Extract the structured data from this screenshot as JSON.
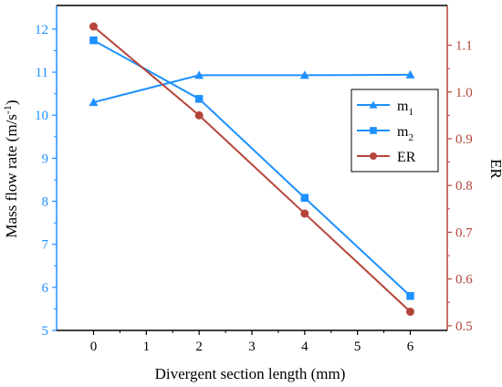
{
  "chart_data": {
    "type": "line",
    "xlabel": "Divergent section length (mm)",
    "ylabel_left": "Mass flow rate (m/s",
    "ylabel_left_sup": "-1",
    "ylabel_left_close": ")",
    "ylabel_right": "ER",
    "x_ticks": [
      0,
      1,
      2,
      3,
      4,
      5,
      6
    ],
    "x_range": [
      -0.7,
      6.7
    ],
    "y_left_ticks": [
      5,
      6,
      7,
      8,
      9,
      10,
      11,
      12
    ],
    "y_left_range": [
      5,
      12.55
    ],
    "y_right_ticks": [
      0.5,
      0.6,
      0.7,
      0.8,
      0.9,
      1.0,
      1.1
    ],
    "y_right_tick_labels": [
      "0.5",
      "0.6",
      "0.7",
      "0.8",
      "0.9",
      "1.0",
      "1.1"
    ],
    "y_right_range": [
      0.49,
      1.185
    ],
    "grid": false,
    "legend_position": "center-right",
    "series": [
      {
        "name": "m",
        "name_sub": "1",
        "axis": "left",
        "marker": "triangle",
        "color": "#1e90ff",
        "x": [
          0,
          2,
          4,
          6
        ],
        "y": [
          10.3,
          10.93,
          10.93,
          10.94
        ]
      },
      {
        "name": "m",
        "name_sub": "2",
        "axis": "left",
        "marker": "square",
        "color": "#1e90ff",
        "x": [
          0,
          2,
          4,
          6
        ],
        "y": [
          11.74,
          10.38,
          8.08,
          5.8
        ]
      },
      {
        "name": "ER",
        "name_sub": "",
        "axis": "right",
        "marker": "circle",
        "color": "#b5453a",
        "x": [
          0,
          2,
          4,
          6
        ],
        "y": [
          1.14,
          0.95,
          0.74,
          0.53
        ]
      }
    ],
    "colors": {
      "left_axis": "#1e90ff",
      "right_axis": "#b5453a",
      "bottom_axis": "#000000"
    }
  }
}
